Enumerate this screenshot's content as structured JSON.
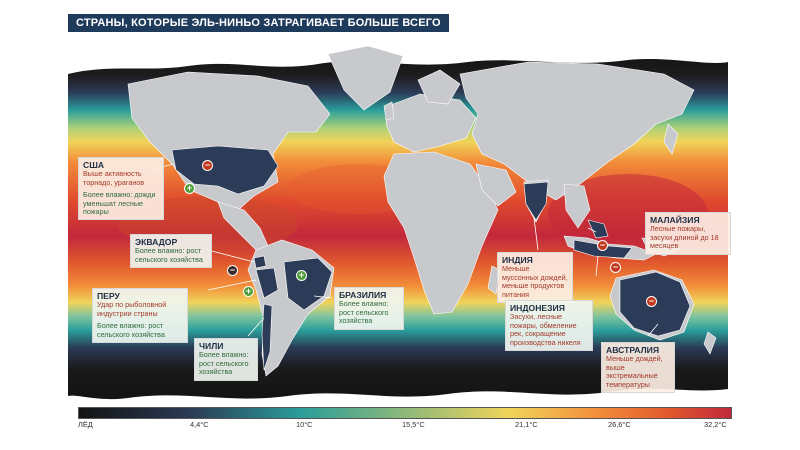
{
  "title": "СТРАНЫ, КОТОРЫЕ ЭЛЬ-НИНЬО ЗАТРАГИВАЕТ БОЛЬШЕ ВСЕГО",
  "colors": {
    "ice": "#131313",
    "cold": "#2b3a55",
    "teal": "#2a9d9a",
    "yellow": "#f1d45a",
    "orange": "#f28b3a",
    "warm": "#e25b2d",
    "hot": "#c2283b",
    "land": "#c7c9cc",
    "country_highlight": "#2c3c58"
  },
  "legend": {
    "labels": [
      "ЛЁД",
      "4,4°C",
      "10°C",
      "15,5°C",
      "21,1°C",
      "26,6°C",
      "32,2°C"
    ]
  },
  "callouts": {
    "usa": {
      "name": "США",
      "line1": "Выше активность торнадо, ураганов",
      "line2": "Более влажно: дожди уменьшат лесные пожары"
    },
    "ecuador": {
      "name": "ЭКВАДОР",
      "line1": "Более влажно: рост сельского хозяйства"
    },
    "peru": {
      "name": "ПЕРУ",
      "line1": "Удар по рыболовной индустрии страны",
      "line2": "Более влажно: рост сельского хозяйства"
    },
    "chile": {
      "name": "ЧИЛИ",
      "line1": "Более влажно: рост сельского хозяйства"
    },
    "brazil": {
      "name": "БРАЗИЛИЯ",
      "line1": "Более влажно: рост сельского хозяйства"
    },
    "india": {
      "name": "ИНДИЯ",
      "line1": "Меньше муссонных дождей, меньше продуктов питания"
    },
    "indonesia": {
      "name": "ИНДОНЕЗИЯ",
      "line1": "Засухи, лесные пожары, обмеление рек, сокращение производства никеля"
    },
    "malaysia": {
      "name": "МАЛАЙЗИЯ",
      "line1": "Лесные пожары, засухи длиной до 18 месяцев"
    },
    "australia": {
      "name": "АВСТРАЛИЯ",
      "line1": "Меньше дождей, выше экстремальные температуры"
    }
  },
  "markers": [
    {
      "id": "usa-minus",
      "kind": "minus"
    },
    {
      "id": "usa-plus",
      "kind": "plus"
    },
    {
      "id": "ecuador-minus",
      "kind": "minus"
    },
    {
      "id": "peru-plus",
      "kind": "plus"
    },
    {
      "id": "brazil-plus",
      "kind": "plus"
    },
    {
      "id": "malaysia-minus",
      "kind": "minus"
    },
    {
      "id": "indonesia-minus",
      "kind": "minus"
    },
    {
      "id": "australia-minus",
      "kind": "minus"
    }
  ]
}
